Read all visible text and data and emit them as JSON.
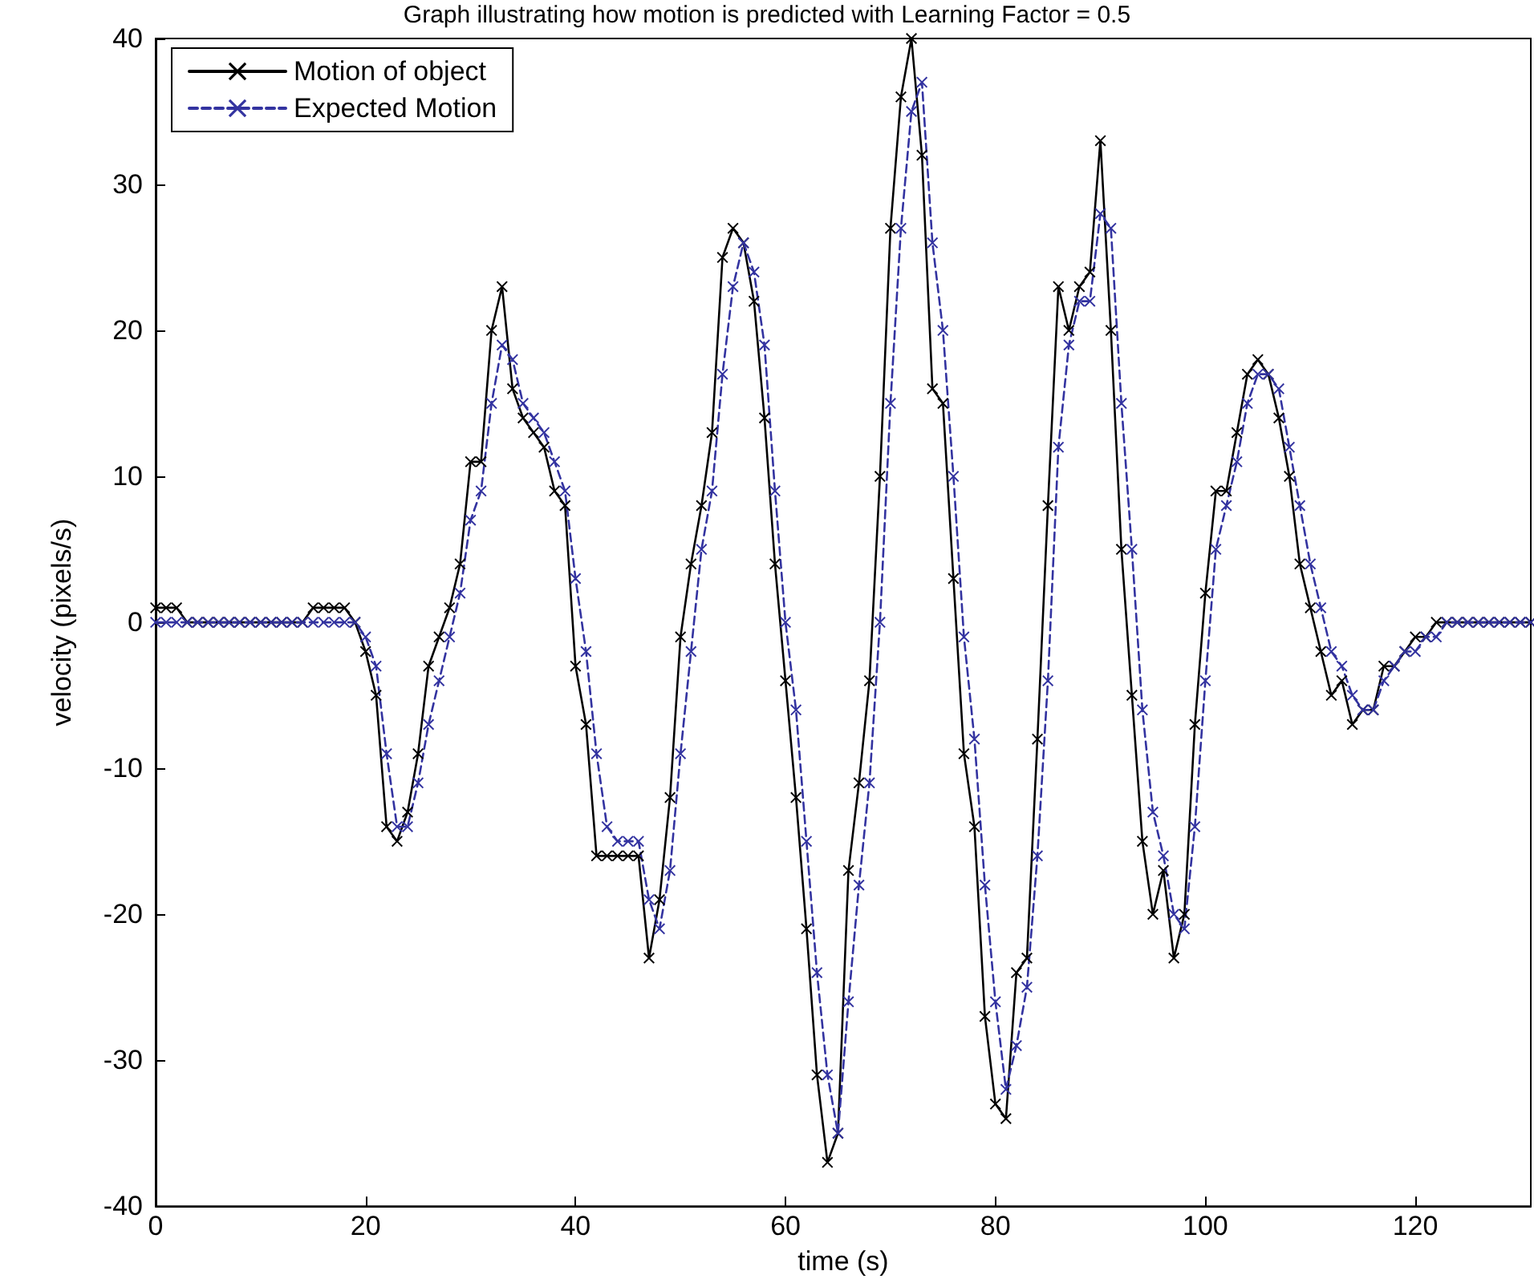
{
  "chart_data": {
    "type": "line",
    "title": "Graph illustrating how motion is predicted with Learning Factor = 0.5",
    "xlabel": "time (s)",
    "ylabel": "velocity (pixels/s)",
    "x": [
      0,
      1,
      2,
      3,
      4,
      5,
      6,
      7,
      8,
      9,
      10,
      11,
      12,
      13,
      14,
      15,
      16,
      17,
      18,
      19,
      20,
      21,
      22,
      23,
      24,
      25,
      26,
      27,
      28,
      29,
      30,
      31,
      32,
      33,
      34,
      35,
      36,
      37,
      38,
      39,
      40,
      41,
      42,
      43,
      44,
      45,
      46,
      47,
      48,
      49,
      50,
      51,
      52,
      53,
      54,
      55,
      56,
      57,
      58,
      59,
      60,
      61,
      62,
      63,
      64,
      65,
      66,
      67,
      68,
      69,
      70,
      71,
      72,
      73,
      74,
      75,
      76,
      77,
      78,
      79,
      80,
      81,
      82,
      83,
      84,
      85,
      86,
      87,
      88,
      89,
      90,
      91,
      92,
      93,
      94,
      95,
      96,
      97,
      98,
      99,
      100,
      101,
      102,
      103,
      104,
      105,
      106,
      107,
      108,
      109,
      110,
      111,
      112,
      113,
      114,
      115,
      116,
      117,
      118,
      119,
      120,
      121,
      122,
      123,
      124,
      125,
      126,
      127,
      128,
      129,
      130,
      131
    ],
    "series": [
      {
        "name": "Motion of object",
        "color": "#000000",
        "line_style": "solid",
        "marker": "cross",
        "values": [
          1,
          1,
          1,
          0,
          0,
          0,
          0,
          0,
          0,
          0,
          0,
          0,
          0,
          0,
          0,
          1,
          1,
          1,
          1,
          0,
          -2,
          -5,
          -14,
          -15,
          -13,
          -9,
          -3,
          -1,
          1,
          4,
          11,
          11,
          20,
          23,
          16,
          14,
          13,
          12,
          9,
          8,
          -3,
          -7,
          -16,
          -16,
          -16,
          -16,
          -16,
          -23,
          -19,
          -12,
          -1,
          4,
          8,
          13,
          25,
          27,
          26,
          22,
          14,
          4,
          -4,
          -12,
          -21,
          -31,
          -37,
          -35,
          -17,
          -11,
          -4,
          10,
          27,
          36,
          40,
          32,
          16,
          15,
          3,
          -9,
          -14,
          -27,
          -33,
          -34,
          -24,
          -23,
          -8,
          8,
          23,
          20,
          23,
          24,
          33,
          20,
          5,
          -5,
          -15,
          -20,
          -17,
          -23,
          -20,
          -7,
          2,
          9,
          9,
          13,
          17,
          18,
          17,
          14,
          10,
          4,
          1,
          -2,
          -5,
          -4,
          -7,
          -6,
          -6,
          -3,
          -3,
          -2,
          -1,
          -1,
          0,
          0,
          0,
          0,
          0,
          0,
          0,
          0,
          0,
          0
        ]
      },
      {
        "name": "Expected Motion",
        "color": "#3333a0",
        "line_style": "dashed",
        "marker": "cross",
        "values": [
          0,
          0,
          0,
          0,
          0,
          0,
          0,
          0,
          0,
          0,
          0,
          0,
          0,
          0,
          0,
          0,
          0,
          0,
          0,
          0,
          -1,
          -3,
          -9,
          -14,
          -14,
          -11,
          -7,
          -4,
          -1,
          2,
          7,
          9,
          15,
          19,
          18,
          15,
          14,
          13,
          11,
          9,
          3,
          -2,
          -9,
          -14,
          -15,
          -15,
          -15,
          -19,
          -21,
          -17,
          -9,
          -2,
          5,
          9,
          17,
          23,
          26,
          24,
          19,
          9,
          0,
          -6,
          -15,
          -24,
          -31,
          -35,
          -26,
          -18,
          -11,
          0,
          15,
          27,
          35,
          37,
          26,
          20,
          10,
          -1,
          -8,
          -18,
          -26,
          -32,
          -29,
          -25,
          -16,
          -4,
          12,
          19,
          22,
          22,
          28,
          27,
          15,
          5,
          -6,
          -13,
          -16,
          -20,
          -21,
          -14,
          -4,
          5,
          8,
          11,
          15,
          17,
          17,
          16,
          12,
          8,
          4,
          1,
          -2,
          -3,
          -5,
          -6,
          -6,
          -4,
          -3,
          -2,
          -2,
          -1,
          -1,
          0,
          0,
          0,
          0,
          0,
          0,
          0,
          0,
          0
        ]
      }
    ],
    "xlim": [
      0,
      131
    ],
    "xticks": [
      0,
      20,
      40,
      60,
      80,
      100,
      120
    ],
    "ylim": [
      -40,
      40
    ],
    "yticks": [
      -40,
      -30,
      -20,
      -10,
      0,
      10,
      20,
      30,
      40
    ],
    "grid": false,
    "legend": "top left"
  }
}
